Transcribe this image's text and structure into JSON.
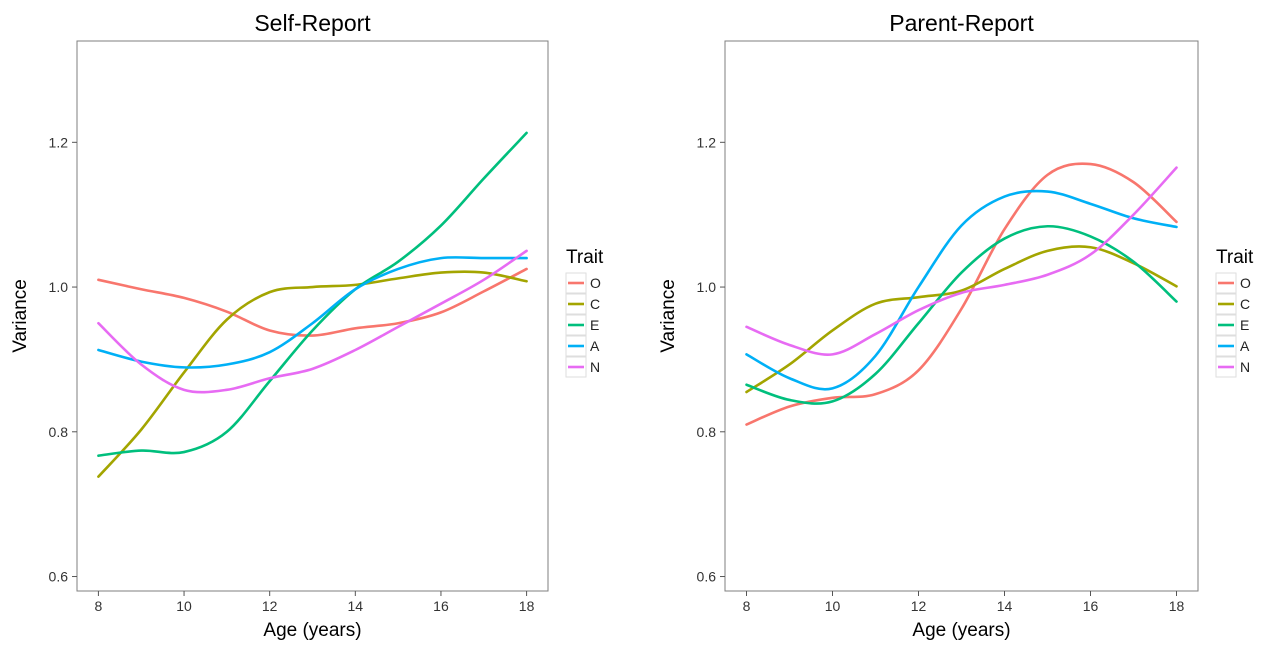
{
  "chart_data": [
    {
      "type": "line",
      "title": "Self-Report",
      "xlabel": "Age (years)",
      "ylabel": "Variance",
      "xlim": [
        7.5,
        18.5
      ],
      "ylim": [
        0.58,
        1.34
      ],
      "xticks": [
        8,
        10,
        12,
        14,
        16,
        18
      ],
      "xtick_labels": [
        "8",
        "10",
        "12",
        "14",
        "16",
        "18"
      ],
      "yticks": [
        0.6,
        0.8,
        1.0,
        1.2
      ],
      "ytick_labels": [
        "0.6",
        "0.8",
        "1.0",
        "1.2"
      ],
      "grid": false,
      "legend": {
        "title": "Trait",
        "position": "right"
      },
      "x": [
        8,
        9,
        10,
        11,
        12,
        13,
        14,
        15,
        16,
        17,
        18
      ],
      "series": [
        {
          "name": "O",
          "color": "#F8766D",
          "values": [
            1.01,
            0.997,
            0.985,
            0.966,
            0.94,
            0.933,
            0.943,
            0.95,
            0.965,
            0.994,
            1.025
          ]
        },
        {
          "name": "C",
          "color": "#A3A500",
          "values": [
            0.738,
            0.803,
            0.882,
            0.955,
            0.993,
            1.0,
            1.003,
            1.012,
            1.02,
            1.02,
            1.008
          ]
        },
        {
          "name": "E",
          "color": "#00BF7D",
          "values": [
            0.767,
            0.774,
            0.772,
            0.8,
            0.87,
            0.94,
            0.997,
            1.035,
            1.085,
            1.15,
            1.213
          ]
        },
        {
          "name": "A",
          "color": "#00B0F6",
          "values": [
            0.913,
            0.897,
            0.889,
            0.893,
            0.91,
            0.95,
            0.997,
            1.025,
            1.04,
            1.04,
            1.04
          ]
        },
        {
          "name": "N",
          "color": "#E76BF3",
          "values": [
            0.95,
            0.893,
            0.858,
            0.858,
            0.874,
            0.887,
            0.913,
            0.945,
            0.977,
            1.01,
            1.05
          ]
        }
      ]
    },
    {
      "type": "line",
      "title": "Parent-Report",
      "xlabel": "Age (years)",
      "ylabel": "Variance",
      "xlim": [
        7.5,
        18.5
      ],
      "ylim": [
        0.58,
        1.34
      ],
      "xticks": [
        8,
        10,
        12,
        14,
        16,
        18
      ],
      "xtick_labels": [
        "8",
        "10",
        "12",
        "14",
        "16",
        "18"
      ],
      "yticks": [
        0.6,
        0.8,
        1.0,
        1.2
      ],
      "ytick_labels": [
        "0.6",
        "0.8",
        "1.0",
        "1.2"
      ],
      "grid": false,
      "legend": {
        "title": "Trait",
        "position": "right"
      },
      "x": [
        8,
        9,
        10,
        11,
        12,
        13,
        14,
        15,
        16,
        17,
        18
      ],
      "series": [
        {
          "name": "O",
          "color": "#F8766D",
          "values": [
            0.81,
            0.835,
            0.847,
            0.852,
            0.885,
            0.97,
            1.08,
            1.155,
            1.17,
            1.145,
            1.09
          ]
        },
        {
          "name": "C",
          "color": "#A3A500",
          "values": [
            0.855,
            0.893,
            0.94,
            0.977,
            0.986,
            0.995,
            1.025,
            1.05,
            1.055,
            1.033,
            1.001
          ]
        },
        {
          "name": "E",
          "color": "#00BF7D",
          "values": [
            0.865,
            0.844,
            0.842,
            0.88,
            0.95,
            1.02,
            1.067,
            1.084,
            1.07,
            1.035,
            0.98
          ]
        },
        {
          "name": "A",
          "color": "#00B0F6",
          "values": [
            0.907,
            0.874,
            0.86,
            0.905,
            1.0,
            1.085,
            1.125,
            1.132,
            1.115,
            1.095,
            1.083
          ]
        },
        {
          "name": "N",
          "color": "#E76BF3",
          "values": [
            0.945,
            0.92,
            0.907,
            0.935,
            0.968,
            0.992,
            1.003,
            1.017,
            1.045,
            1.1,
            1.165
          ]
        }
      ]
    }
  ]
}
